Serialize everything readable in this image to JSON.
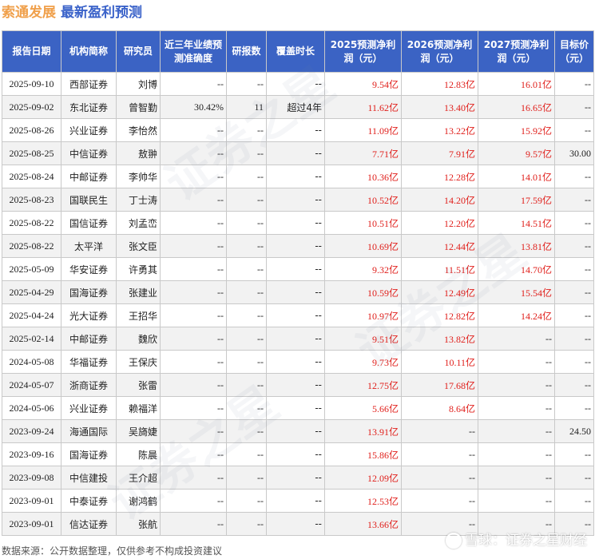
{
  "header": {
    "company": "索通发展",
    "subtitle": "最新盈利预测"
  },
  "columns": [
    "报告日期",
    "机构简称",
    "研究员",
    "近三年业绩预测准确度",
    "研报数",
    "覆盖时长",
    "2025预测净利润（元）",
    "2026预测净利润（元）",
    "2027预测净利润（元）",
    "目标价（元）"
  ],
  "rows": [
    {
      "date": "2025-09-10",
      "org": "西部证券",
      "analyst": "刘博",
      "acc": "--",
      "reports": "--",
      "cover": "--",
      "p2025": "9.54亿",
      "p2026": "12.83亿",
      "p2027": "16.01亿",
      "target": "--"
    },
    {
      "date": "2025-09-02",
      "org": "东北证券",
      "analyst": "曾智勤",
      "acc": "30.42%",
      "reports": "11",
      "cover": "超过4年",
      "p2025": "11.62亿",
      "p2026": "13.40亿",
      "p2027": "16.65亿",
      "target": "--"
    },
    {
      "date": "2025-08-26",
      "org": "兴业证券",
      "analyst": "李怡然",
      "acc": "--",
      "reports": "--",
      "cover": "--",
      "p2025": "11.09亿",
      "p2026": "13.22亿",
      "p2027": "15.92亿",
      "target": "--"
    },
    {
      "date": "2025-08-25",
      "org": "中信证券",
      "analyst": "敖翀",
      "acc": "--",
      "reports": "--",
      "cover": "--",
      "p2025": "7.71亿",
      "p2026": "7.91亿",
      "p2027": "9.57亿",
      "target": "30.00"
    },
    {
      "date": "2025-08-24",
      "org": "中邮证券",
      "analyst": "李帅华",
      "acc": "--",
      "reports": "--",
      "cover": "--",
      "p2025": "10.36亿",
      "p2026": "12.28亿",
      "p2027": "14.01亿",
      "target": "--"
    },
    {
      "date": "2025-08-23",
      "org": "国联民生",
      "analyst": "丁士涛",
      "acc": "--",
      "reports": "--",
      "cover": "--",
      "p2025": "10.52亿",
      "p2026": "14.20亿",
      "p2027": "17.59亿",
      "target": "--"
    },
    {
      "date": "2025-08-22",
      "org": "国信证券",
      "analyst": "刘孟峦",
      "acc": "--",
      "reports": "--",
      "cover": "--",
      "p2025": "10.51亿",
      "p2026": "12.20亿",
      "p2027": "14.51亿",
      "target": "--"
    },
    {
      "date": "2025-08-22",
      "org": "太平洋",
      "analyst": "张文臣",
      "acc": "--",
      "reports": "--",
      "cover": "--",
      "p2025": "10.69亿",
      "p2026": "12.44亿",
      "p2027": "13.81亿",
      "target": "--"
    },
    {
      "date": "2025-05-09",
      "org": "华安证券",
      "analyst": "许勇其",
      "acc": "--",
      "reports": "--",
      "cover": "--",
      "p2025": "9.32亿",
      "p2026": "11.51亿",
      "p2027": "14.70亿",
      "target": "--"
    },
    {
      "date": "2025-04-29",
      "org": "国海证券",
      "analyst": "张建业",
      "acc": "--",
      "reports": "--",
      "cover": "--",
      "p2025": "10.59亿",
      "p2026": "12.49亿",
      "p2027": "15.54亿",
      "target": "--"
    },
    {
      "date": "2025-04-24",
      "org": "光大证券",
      "analyst": "王招华",
      "acc": "--",
      "reports": "--",
      "cover": "--",
      "p2025": "10.97亿",
      "p2026": "12.82亿",
      "p2027": "14.24亿",
      "target": "--"
    },
    {
      "date": "2025-02-14",
      "org": "中邮证券",
      "analyst": "魏欣",
      "acc": "--",
      "reports": "--",
      "cover": "--",
      "p2025": "9.51亿",
      "p2026": "13.82亿",
      "p2027": "--",
      "target": "--"
    },
    {
      "date": "2024-05-08",
      "org": "华福证券",
      "analyst": "王保庆",
      "acc": "--",
      "reports": "--",
      "cover": "--",
      "p2025": "9.73亿",
      "p2026": "10.11亿",
      "p2027": "--",
      "target": "--"
    },
    {
      "date": "2024-05-07",
      "org": "浙商证券",
      "analyst": "张雷",
      "acc": "--",
      "reports": "--",
      "cover": "--",
      "p2025": "12.75亿",
      "p2026": "17.68亿",
      "p2027": "--",
      "target": "--"
    },
    {
      "date": "2024-05-06",
      "org": "兴业证券",
      "analyst": "赖福洋",
      "acc": "--",
      "reports": "--",
      "cover": "--",
      "p2025": "5.66亿",
      "p2026": "8.64亿",
      "p2027": "--",
      "target": "--"
    },
    {
      "date": "2023-09-24",
      "org": "海通国际",
      "analyst": "吴旖婕",
      "acc": "--",
      "reports": "--",
      "cover": "--",
      "p2025": "13.91亿",
      "p2026": "--",
      "p2027": "--",
      "target": "24.50"
    },
    {
      "date": "2023-09-16",
      "org": "国海证券",
      "analyst": "陈晨",
      "acc": "--",
      "reports": "--",
      "cover": "--",
      "p2025": "15.86亿",
      "p2026": "--",
      "p2027": "--",
      "target": "--"
    },
    {
      "date": "2023-09-08",
      "org": "中信建投",
      "analyst": "王介超",
      "acc": "--",
      "reports": "--",
      "cover": "--",
      "p2025": "12.09亿",
      "p2026": "--",
      "p2027": "--",
      "target": "--"
    },
    {
      "date": "2023-09-01",
      "org": "中泰证券",
      "analyst": "谢鸿鹤",
      "acc": "--",
      "reports": "--",
      "cover": "--",
      "p2025": "12.53亿",
      "p2026": "--",
      "p2027": "--",
      "target": "--"
    },
    {
      "date": "2023-09-01",
      "org": "信达证券",
      "analyst": "张航",
      "acc": "--",
      "reports": "--",
      "cover": "--",
      "p2025": "13.66亿",
      "p2026": "--",
      "p2027": "--",
      "target": "--"
    }
  ],
  "footer": {
    "source": "数据来源：公开数据整理，仅供参考不构成投资建议"
  },
  "brand": {
    "text": "雪球：证券之星财经"
  },
  "watermark": {
    "text": "证券之星"
  },
  "colors": {
    "header_bg": "#3b63c4",
    "forecast_text": "#e0201c",
    "title_company": "#f0a04b",
    "title_sub": "#3a62c9"
  }
}
